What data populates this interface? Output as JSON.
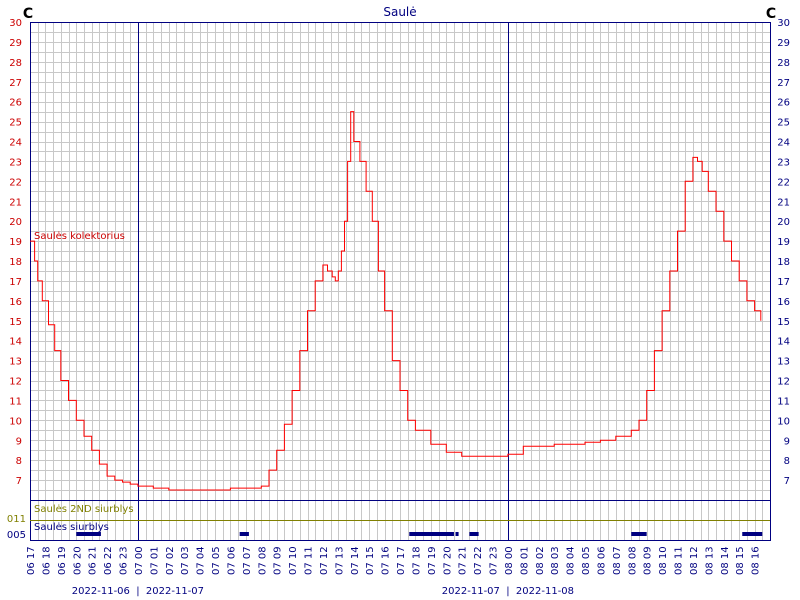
{
  "chart_data": {
    "type": "line",
    "title": "Saulė",
    "y_unit_left": "C",
    "y_unit_right": "C",
    "ylim": [
      6,
      30
    ],
    "y_ticks": [
      7,
      8,
      9,
      10,
      11,
      12,
      13,
      14,
      15,
      16,
      17,
      18,
      19,
      20,
      21,
      22,
      23,
      24,
      25,
      26,
      27,
      28,
      29,
      30
    ],
    "grid": true,
    "x_tick_labels": [
      "06 17",
      "06 18",
      "06 19",
      "06 20",
      "06 21",
      "06 22",
      "06 23",
      "07 00",
      "07 01",
      "07 02",
      "07 03",
      "07 04",
      "07 05",
      "07 06",
      "07 07",
      "07 08",
      "07 09",
      "07 10",
      "07 11",
      "07 12",
      "07 13",
      "07 14",
      "07 15",
      "07 16",
      "07 17",
      "07 18",
      "07 19",
      "07 20",
      "07 21",
      "07 22",
      "07 23",
      "08 00",
      "08 01",
      "08 02",
      "08 03",
      "08 04",
      "08 05",
      "08 06",
      "08 07",
      "08 08",
      "08 09",
      "08 10",
      "08 11",
      "08 12",
      "08 13",
      "08 14",
      "08 15",
      "08 16"
    ],
    "day_boundaries": [
      7,
      31
    ],
    "date_labels": [
      {
        "left": "2022-11-06",
        "right": "2022-11-07",
        "at_hour": 7
      },
      {
        "left": "2022-11-07",
        "right": "2022-11-08",
        "at_hour": 31
      }
    ],
    "series": [
      {
        "name": "Saulės kolektorius",
        "color": "#ff0000",
        "x": [
          0,
          0.3,
          0.5,
          0.8,
          1.2,
          1.6,
          2.0,
          2.5,
          3.0,
          3.5,
          4.0,
          4.5,
          5.0,
          5.5,
          6.0,
          6.5,
          7.0,
          8,
          9,
          10,
          11,
          12,
          13,
          14,
          15,
          15.5,
          16,
          16.5,
          17,
          17.5,
          18,
          18.5,
          19,
          19.3,
          19.6,
          19.8,
          20.0,
          20.2,
          20.4,
          20.6,
          20.8,
          21.0,
          21.4,
          21.8,
          22.2,
          22.6,
          23.0,
          23.5,
          24.0,
          24.5,
          25.0,
          26,
          27,
          28,
          29,
          30,
          31,
          32,
          33,
          34,
          35,
          36,
          37,
          38,
          39,
          39.5,
          40,
          40.5,
          41,
          41.5,
          42,
          42.5,
          43.0,
          43.3,
          43.6,
          44.0,
          44.5,
          45.0,
          45.5,
          46.0,
          46.5,
          47.0,
          47.4
        ],
        "values": [
          19.0,
          18.0,
          17.0,
          16.0,
          14.8,
          13.5,
          12.0,
          11.0,
          10.0,
          9.2,
          8.5,
          7.8,
          7.2,
          7.0,
          6.9,
          6.8,
          6.7,
          6.6,
          6.5,
          6.5,
          6.5,
          6.5,
          6.6,
          6.6,
          6.7,
          7.5,
          8.5,
          9.8,
          11.5,
          13.5,
          15.5,
          17.0,
          17.8,
          17.5,
          17.2,
          17.0,
          17.5,
          18.5,
          20.0,
          23.0,
          25.5,
          24.0,
          23.0,
          21.5,
          20.0,
          17.5,
          15.5,
          13.0,
          11.5,
          10.0,
          9.5,
          8.8,
          8.4,
          8.2,
          8.2,
          8.2,
          8.3,
          8.7,
          8.7,
          8.8,
          8.8,
          8.9,
          9.0,
          9.2,
          9.5,
          10.0,
          11.5,
          13.5,
          15.5,
          17.5,
          19.5,
          22.0,
          23.2,
          23.0,
          22.5,
          21.5,
          20.5,
          19.0,
          18.0,
          17.0,
          16.0,
          15.5,
          15.0
        ]
      },
      {
        "name": "Saulės 2ND siurblys",
        "color": "#808000",
        "axis_label": "011",
        "on_intervals": []
      },
      {
        "name": "Saulės siurblys",
        "color": "#000080",
        "axis_label": "005",
        "on_intervals": [
          [
            3.0,
            4.6
          ],
          [
            13.6,
            14.2
          ],
          [
            24.6,
            27.5
          ],
          [
            27.6,
            27.8
          ],
          [
            28.5,
            29.1
          ],
          [
            39.0,
            40.0
          ],
          [
            46.2,
            47.5
          ]
        ]
      }
    ]
  }
}
